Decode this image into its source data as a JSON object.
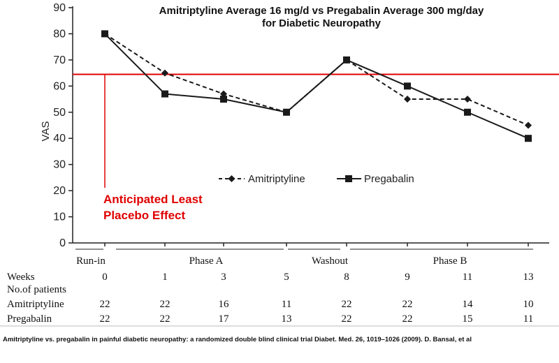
{
  "chart_data": {
    "type": "line",
    "title": [
      "Amitriptyline Average 16 mg/d vs Pregabalin Average 300 mg/day",
      "for Diabetic Neuropathy"
    ],
    "ylabel": "VAS",
    "ylim": [
      0,
      90
    ],
    "yticks": [
      0,
      10,
      20,
      30,
      40,
      50,
      60,
      70,
      80,
      90
    ],
    "categories": [
      "0",
      "1",
      "3",
      "5",
      "8",
      "9",
      "11",
      "13"
    ],
    "series": [
      {
        "name": "Amitriptyline",
        "style": "dashed",
        "marker": "diamond",
        "values": [
          80,
          65,
          57,
          50,
          70,
          55,
          55,
          45
        ]
      },
      {
        "name": "Pregabalin",
        "style": "solid",
        "marker": "square",
        "values": [
          80,
          57,
          55,
          50,
          70,
          60,
          50,
          40
        ]
      }
    ],
    "reference_line": {
      "value": 64.5,
      "color": "#e00000"
    },
    "annotation": [
      "Anticipated Least",
      "Placebo Effect"
    ],
    "phases": [
      "Run-in",
      "Phase A",
      "Washout",
      "Phase B"
    ],
    "table": {
      "weeks_label": "Weeks",
      "patients_label": "No.of patients",
      "rows": [
        {
          "label": "Amitriptyline",
          "values": [
            "22",
            "22",
            "16",
            "11",
            "22",
            "22",
            "14",
            "10"
          ]
        },
        {
          "label": "Pregabalin",
          "values": [
            "22",
            "22",
            "17",
            "13",
            "22",
            "22",
            "15",
            "11"
          ]
        }
      ]
    },
    "colors": {
      "series": "#1a1a1a",
      "reference": "#e00000"
    }
  },
  "caption": "Amitriptyline vs. pregabalin in painful diabetic neuropathy: a randomized double blind clinical trial Diabet. Med. 26, 1019–1026 (2009). D. Bansal, et al"
}
